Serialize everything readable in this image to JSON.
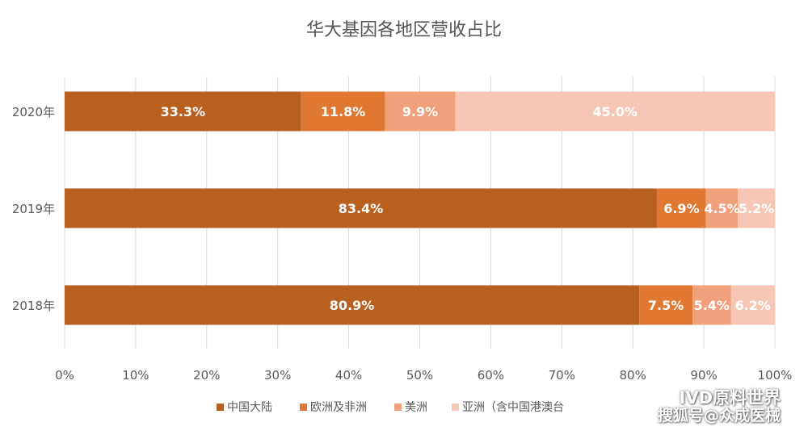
{
  "chart_data": {
    "type": "bar",
    "orientation": "horizontal",
    "stacked": "percent",
    "title": "华大基因各地区营收占比",
    "categories": [
      "2020年",
      "2019年",
      "2018年"
    ],
    "series": [
      {
        "name": "中国大陆",
        "values": [
          33.3,
          83.4,
          80.9
        ],
        "labels": [
          "33.3%",
          "83.4%",
          "80.9%"
        ],
        "color": "#B8601F"
      },
      {
        "name": "欧洲及非洲",
        "values": [
          11.8,
          6.9,
          7.5
        ],
        "labels": [
          "11.8%",
          "6.9%",
          "7.5%"
        ],
        "color": "#E07832"
      },
      {
        "name": "美洲",
        "values": [
          9.9,
          4.5,
          5.4
        ],
        "labels": [
          "9.9%",
          "4.5%",
          "5.4%"
        ],
        "color": "#F0A07A"
      },
      {
        "name": "亚洲（含中国港澳台",
        "values": [
          45.0,
          5.2,
          6.2
        ],
        "labels": [
          "45.0%",
          "5.2%",
          "6.2%"
        ],
        "color": "#F5C7B4"
      }
    ],
    "xlim": [
      0,
      100
    ],
    "xticks": [
      "0%",
      "10%",
      "20%",
      "30%",
      "40%",
      "50%",
      "60%",
      "70%",
      "80%",
      "90%",
      "100%"
    ],
    "grid": true,
    "legend_position": "bottom"
  },
  "watermark": {
    "line1": "IVD原料世界",
    "line2": "搜狐号@众成医械",
    "icon": "wechat-icon"
  }
}
